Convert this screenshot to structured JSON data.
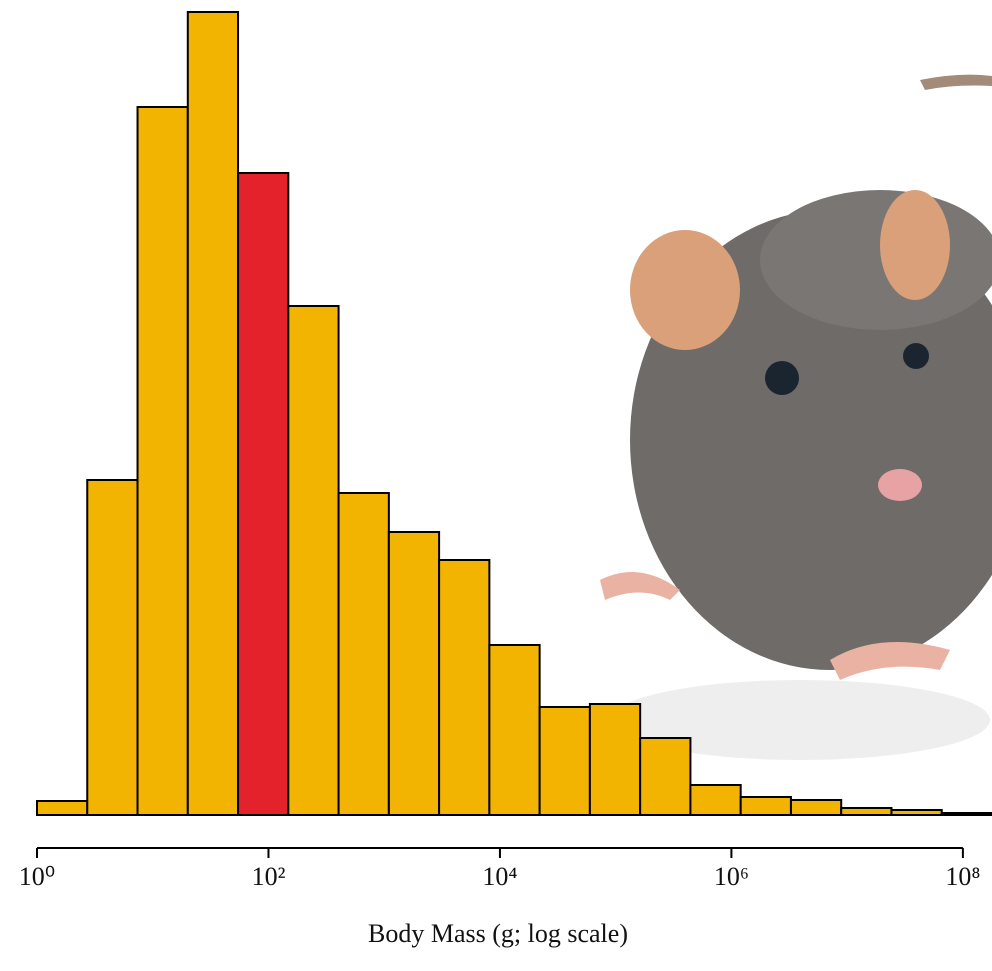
{
  "chart_data": {
    "type": "histogram",
    "xlabel": "Body Mass (g; log scale)",
    "xscale": "log",
    "bins": [
      1,
      2.718,
      7.389,
      20.09,
      54.6,
      148.4,
      403.4,
      1097,
      2981,
      8103,
      22026,
      59874,
      162755,
      442413,
      1202604,
      3269017,
      8886111,
      24154953,
      65659969,
      178482301
    ],
    "values": [
      14,
      335,
      708,
      803,
      642,
      509,
      322,
      283,
      255,
      170,
      108,
      111,
      77,
      30,
      18,
      15,
      7,
      5,
      2
    ],
    "colors": [
      "#f2b400",
      "#f2b400",
      "#f2b400",
      "#f2b400",
      "#e3222b",
      "#f2b400",
      "#f2b400",
      "#f2b400",
      "#f2b400",
      "#f2b400",
      "#f2b400",
      "#f2b400",
      "#f2b400",
      "#f2b400",
      "#f2b400",
      "#f2b400",
      "#f2b400",
      "#f2b400",
      "#f2b400"
    ],
    "xlim": [
      1,
      178482301
    ],
    "ylim": [
      0,
      803
    ],
    "xticks": [
      {
        "value": 1,
        "label": "10⁰"
      },
      {
        "value": 100,
        "label": "10²"
      },
      {
        "value": 10000,
        "label": "10⁴"
      },
      {
        "value": 1000000,
        "label": "10⁶"
      },
      {
        "value": 100000000,
        "label": "10⁸"
      }
    ]
  }
}
